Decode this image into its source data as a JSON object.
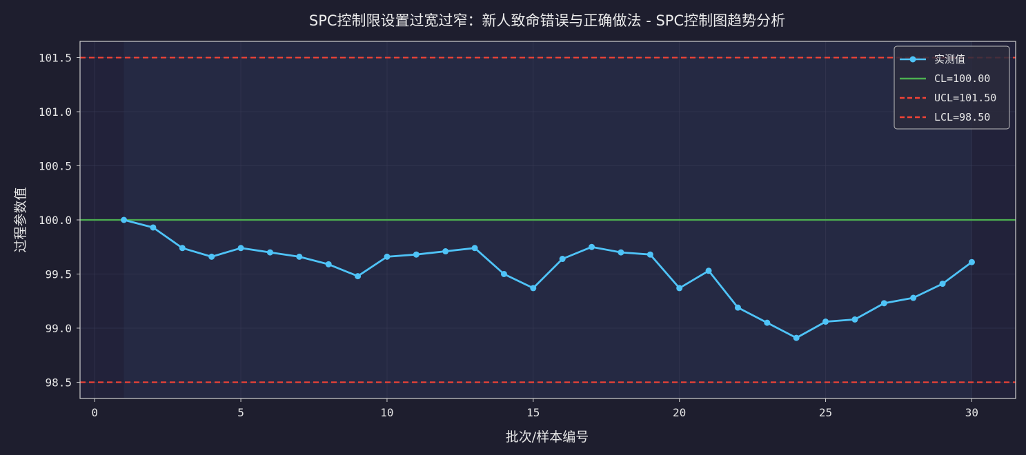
{
  "chart_data": {
    "type": "line",
    "title": "SPC控制限设置过宽过窄：新人致命错误与正确做法 - SPC控制图趋势分析",
    "xlabel": "批次/样本编号",
    "ylabel": "过程参数值",
    "xlim": [
      -0.5,
      31.5
    ],
    "ylim": [
      98.35,
      101.65
    ],
    "xticks": [
      0,
      5,
      10,
      15,
      20,
      25,
      30
    ],
    "yticks": [
      98.5,
      99.0,
      99.5,
      100.0,
      100.5,
      101.0,
      101.5
    ],
    "ytick_labels": [
      "98.5",
      "99.0",
      "99.5",
      "100.0",
      "100.5",
      "101.0",
      "101.5"
    ],
    "grid": true,
    "legend_position": "top-right",
    "series": [
      {
        "name": "实测值",
        "color": "#4fc3f7",
        "x": [
          1,
          2,
          3,
          4,
          5,
          6,
          7,
          8,
          9,
          10,
          11,
          12,
          13,
          14,
          15,
          16,
          17,
          18,
          19,
          20,
          21,
          22,
          23,
          24,
          25,
          26,
          27,
          28,
          29,
          30
        ],
        "y": [
          100.0,
          99.93,
          99.74,
          99.66,
          99.74,
          99.7,
          99.66,
          99.59,
          99.48,
          99.66,
          99.68,
          99.71,
          99.74,
          99.5,
          99.37,
          99.64,
          99.75,
          99.7,
          99.68,
          99.37,
          99.53,
          99.19,
          99.05,
          98.91,
          99.06,
          99.08,
          99.23,
          99.28,
          99.41,
          99.61
        ]
      }
    ],
    "control_lines": [
      {
        "name": "CL=100.00",
        "value": 100.0,
        "color": "#4caf50",
        "style": "solid"
      },
      {
        "name": "UCL=101.50",
        "value": 101.5,
        "color": "#f44336",
        "style": "dashed"
      },
      {
        "name": "LCL=98.50",
        "value": 98.5,
        "color": "#f44336",
        "style": "dashed"
      }
    ],
    "shaded_x_range": [
      1,
      30
    ]
  }
}
